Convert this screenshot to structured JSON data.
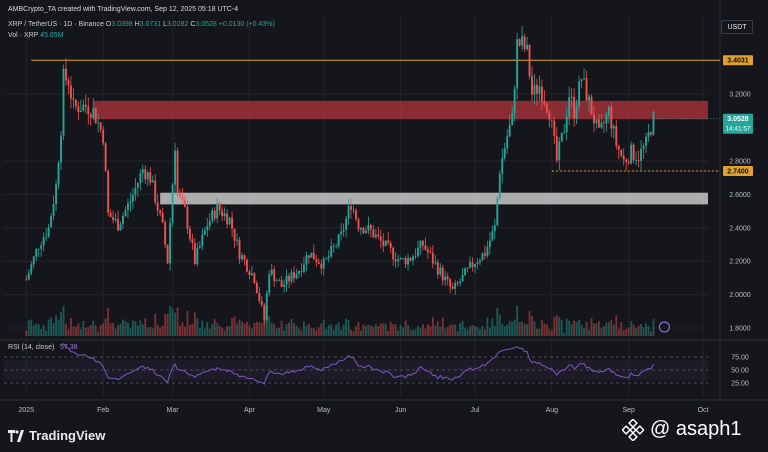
{
  "header": {
    "created_by": "AMBCrypto_TA created with TradingView.com, Sep 12, 2025 05:18 UTC-4",
    "symbol": "XRP / TetherUS · 1D · Binance",
    "ohlc": {
      "o_label": "O",
      "o": "3.0398",
      "h_label": "H",
      "h": "3.0731",
      "l_label": "L",
      "l": "3.0282",
      "c_label": "C",
      "c": "3.0528",
      "change": "+0.0130 (+0.43%)"
    },
    "volume_label": "Vol · XRP",
    "volume_value": "45.65M",
    "currency": "USDT"
  },
  "footer": {
    "brand": "TradingView",
    "watermark": "@ asaph1"
  },
  "colors": {
    "background": "#15161b",
    "up": "#26a69a",
    "down": "#ef5350",
    "resistance_zone": "#b3343f",
    "support_zone": "#c8c8c8",
    "level_line": "#e0a030",
    "rsi_line": "#7e57c2"
  },
  "chart_data": {
    "type": "candlestick",
    "symbol": "XRP / TetherUS",
    "timeframe": "1D",
    "x_ticks": [
      "2025",
      "Feb",
      "Mar",
      "Apr",
      "May",
      "Jun",
      "Jul",
      "Aug",
      "Sep",
      "Oct"
    ],
    "y_ticks": [
      "3.2000",
      "2.8000",
      "2.6000",
      "2.4000",
      "2.2000",
      "2.0000",
      "1.8000"
    ],
    "ylim": [
      1.74,
      3.68
    ],
    "price_labels": [
      {
        "value": 3.4031,
        "text": "3.4031"
      },
      {
        "value": 3.0528,
        "text": "3.0528",
        "sub": "14:41:57"
      },
      {
        "value": 2.74,
        "text": "2.7400"
      }
    ],
    "zones": [
      {
        "name": "resistance",
        "from": 3.05,
        "to": 3.16
      },
      {
        "name": "support",
        "from": 2.54,
        "to": 2.61
      }
    ],
    "levels": [
      3.4031,
      2.74
    ],
    "close_path": [
      [
        "2025-01-01",
        2.09
      ],
      [
        "2025-01-06",
        2.3
      ],
      [
        "2025-01-10",
        2.4
      ],
      [
        "2025-01-13",
        2.65
      ],
      [
        "2025-01-15",
        3.0
      ],
      [
        "2025-01-16",
        3.3
      ],
      [
        "2025-01-18",
        3.28
      ],
      [
        "2025-01-20",
        3.12
      ],
      [
        "2025-01-25",
        3.13
      ],
      [
        "2025-01-28",
        3.1
      ],
      [
        "2025-02-01",
        2.95
      ],
      [
        "2025-02-03",
        2.48
      ],
      [
        "2025-02-07",
        2.42
      ],
      [
        "2025-02-12",
        2.56
      ],
      [
        "2025-02-17",
        2.75
      ],
      [
        "2025-02-20",
        2.7
      ],
      [
        "2025-02-25",
        2.4
      ],
      [
        "2025-02-27",
        2.2
      ],
      [
        "2025-03-02",
        2.9
      ],
      [
        "2025-03-03",
        2.6
      ],
      [
        "2025-03-06",
        2.5
      ],
      [
        "2025-03-10",
        2.2
      ],
      [
        "2025-03-15",
        2.42
      ],
      [
        "2025-03-19",
        2.52
      ],
      [
        "2025-03-24",
        2.45
      ],
      [
        "2025-03-28",
        2.25
      ],
      [
        "2025-04-03",
        2.1
      ],
      [
        "2025-04-07",
        1.85
      ],
      [
        "2025-04-09",
        2.15
      ],
      [
        "2025-04-14",
        2.05
      ],
      [
        "2025-04-21",
        2.15
      ],
      [
        "2025-04-25",
        2.25
      ],
      [
        "2025-05-01",
        2.18
      ],
      [
        "2025-05-08",
        2.35
      ],
      [
        "2025-05-12",
        2.55
      ],
      [
        "2025-05-15",
        2.42
      ],
      [
        "2025-05-20",
        2.38
      ],
      [
        "2025-05-25",
        2.3
      ],
      [
        "2025-06-01",
        2.2
      ],
      [
        "2025-06-05",
        2.22
      ],
      [
        "2025-06-10",
        2.3
      ],
      [
        "2025-06-15",
        2.18
      ],
      [
        "2025-06-22",
        2.02
      ],
      [
        "2025-06-26",
        2.1
      ],
      [
        "2025-07-01",
        2.2
      ],
      [
        "2025-07-05",
        2.25
      ],
      [
        "2025-07-09",
        2.4
      ],
      [
        "2025-07-11",
        2.75
      ],
      [
        "2025-07-14",
        2.95
      ],
      [
        "2025-07-16",
        3.05
      ],
      [
        "2025-07-18",
        3.5
      ],
      [
        "2025-07-20",
        3.5
      ],
      [
        "2025-07-22",
        3.45
      ],
      [
        "2025-07-24",
        3.2
      ],
      [
        "2025-07-27",
        3.25
      ],
      [
        "2025-07-31",
        3.1
      ],
      [
        "2025-08-03",
        2.8
      ],
      [
        "2025-08-06",
        3.0
      ],
      [
        "2025-08-08",
        3.2
      ],
      [
        "2025-08-10",
        3.1
      ],
      [
        "2025-08-13",
        3.3
      ],
      [
        "2025-08-16",
        3.15
      ],
      [
        "2025-08-20",
        2.95
      ],
      [
        "2025-08-24",
        3.1
      ],
      [
        "2025-08-27",
        2.9
      ],
      [
        "2025-08-30",
        2.8
      ],
      [
        "2025-09-02",
        2.85
      ],
      [
        "2025-09-05",
        2.83
      ],
      [
        "2025-09-08",
        2.9
      ],
      [
        "2025-09-11",
        3.0528
      ]
    ],
    "volume": {
      "label": "Vol · XRP",
      "last": "45.65M"
    },
    "rsi": {
      "label": "RSI (14, close)",
      "value": "57.38",
      "levels": [
        75,
        50,
        25
      ],
      "tick_labels": [
        "75.00",
        "50.00",
        "25.00"
      ],
      "band": [
        30,
        70
      ]
    }
  }
}
